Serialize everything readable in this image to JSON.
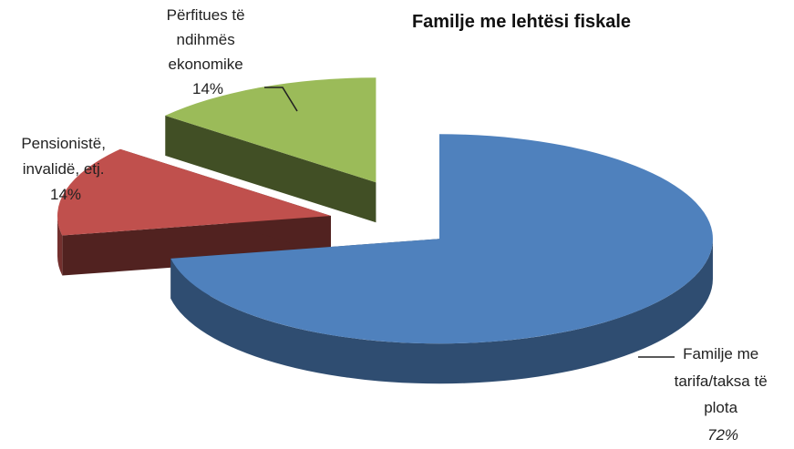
{
  "chart_data": {
    "type": "pie",
    "style": "3d-exploded",
    "title": "Familje me lehtësi fiskale",
    "legend": "none",
    "slices": [
      {
        "label_lines": [
          "Familje me",
          "tarifa/taksa të",
          "plota"
        ],
        "percent_label": "72%",
        "value": 72,
        "color": "#4f81bd"
      },
      {
        "label_lines": [
          "Pensionistë,",
          "invalidë, etj."
        ],
        "percent_label": "14%",
        "value": 14,
        "color": "#c0504d"
      },
      {
        "label_lines": [
          "Përfitues të",
          "ndihmës",
          "ekonomike"
        ],
        "percent_label": "14%",
        "value": 14,
        "color": "#9bbb59"
      }
    ]
  }
}
